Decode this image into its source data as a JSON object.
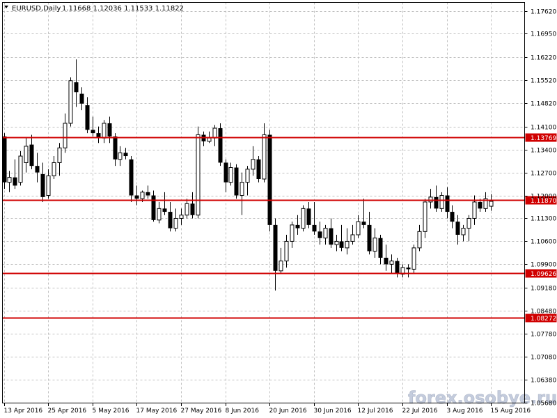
{
  "header": {
    "symbol": "EURUSD,Daily",
    "quote": "1.11668 1.12036 1.11533 1.11822",
    "symbol_dropdown_icon": "triangle-down-icon"
  },
  "watermark": "forex.osobye.ru",
  "colors": {
    "background": "#ffffff",
    "grid": "#c0c0c0",
    "candle": "#000000",
    "level_line": "#d00000",
    "level_tag": "#d00000"
  },
  "chart_data": {
    "type": "candlestick",
    "symbol": "EURUSD",
    "timeframe": "Daily",
    "ylim": [
      1.0568,
      1.1762
    ],
    "grid": true,
    "y_ticks": [
      "1.17620",
      "1.16950",
      "1.16220",
      "1.15520",
      "1.14820",
      "1.14100",
      "1.13400",
      "1.12700",
      "1.12000",
      "1.11300",
      "1.10600",
      "1.09900",
      "1.09180",
      "1.08480",
      "1.07780",
      "1.07080",
      "1.06380",
      "1.05680"
    ],
    "x_ticks": [
      {
        "label": "13 Apr 2016",
        "index": 0
      },
      {
        "label": "25 Apr 2016",
        "index": 8
      },
      {
        "label": "5 May 2016",
        "index": 16
      },
      {
        "label": "17 May 2016",
        "index": 24
      },
      {
        "label": "27 May 2016",
        "index": 32
      },
      {
        "label": "8 Jun 2016",
        "index": 40
      },
      {
        "label": "20 Jun 2016",
        "index": 48
      },
      {
        "label": "30 Jun 2016",
        "index": 56
      },
      {
        "label": "12 Jul 2016",
        "index": 64
      },
      {
        "label": "22 Jul 2016",
        "index": 72
      },
      {
        "label": "3 Aug 2016",
        "index": 80
      },
      {
        "label": "15 Aug 2016",
        "index": 88
      }
    ],
    "levels": [
      {
        "value": 1.13769,
        "label": "1.13769"
      },
      {
        "value": 1.1187,
        "label": "1.11870"
      },
      {
        "value": 1.09626,
        "label": "1.09626"
      },
      {
        "value": 1.08272,
        "label": "1.08272"
      }
    ],
    "candles": [
      [
        1.138,
        1.139,
        1.122,
        1.124
      ],
      [
        1.124,
        1.1275,
        1.121,
        1.1255
      ],
      [
        1.1255,
        1.131,
        1.122,
        1.123
      ],
      [
        1.124,
        1.1335,
        1.123,
        1.132
      ],
      [
        1.13,
        1.1375,
        1.127,
        1.135
      ],
      [
        1.1355,
        1.1385,
        1.128,
        1.129
      ],
      [
        1.129,
        1.133,
        1.124,
        1.127
      ],
      [
        1.1265,
        1.13,
        1.118,
        1.1195
      ],
      [
        1.12,
        1.128,
        1.119,
        1.126
      ],
      [
        1.126,
        1.132,
        1.125,
        1.13
      ],
      [
        1.13,
        1.136,
        1.126,
        1.1345
      ],
      [
        1.1345,
        1.145,
        1.133,
        1.142
      ],
      [
        1.142,
        1.156,
        1.141,
        1.155
      ],
      [
        1.1545,
        1.1615,
        1.147,
        1.1515
      ],
      [
        1.151,
        1.153,
        1.146,
        1.148
      ],
      [
        1.1475,
        1.15,
        1.139,
        1.14
      ],
      [
        1.14,
        1.144,
        1.138,
        1.139
      ],
      [
        1.139,
        1.141,
        1.136,
        1.1375
      ],
      [
        1.1375,
        1.143,
        1.136,
        1.142
      ],
      [
        1.142,
        1.144,
        1.136,
        1.138
      ],
      [
        1.138,
        1.139,
        1.129,
        1.131
      ],
      [
        1.131,
        1.135,
        1.129,
        1.133
      ],
      [
        1.133,
        1.1345,
        1.131,
        1.132
      ],
      [
        1.131,
        1.132,
        1.118,
        1.12
      ],
      [
        1.12,
        1.123,
        1.117,
        1.119
      ],
      [
        1.119,
        1.1215,
        1.118,
        1.121
      ],
      [
        1.121,
        1.123,
        1.119,
        1.12
      ],
      [
        1.12,
        1.1215,
        1.112,
        1.1125
      ],
      [
        1.1125,
        1.118,
        1.1115,
        1.116
      ],
      [
        1.116,
        1.121,
        1.114,
        1.115
      ],
      [
        1.115,
        1.118,
        1.109,
        1.11
      ],
      [
        1.11,
        1.116,
        1.109,
        1.113
      ],
      [
        1.113,
        1.116,
        1.111,
        1.114
      ],
      [
        1.114,
        1.119,
        1.113,
        1.1175
      ],
      [
        1.1175,
        1.121,
        1.113,
        1.114
      ],
      [
        1.114,
        1.141,
        1.113,
        1.1385
      ],
      [
        1.1385,
        1.1395,
        1.135,
        1.1365
      ],
      [
        1.1365,
        1.1395,
        1.136,
        1.1375
      ],
      [
        1.1375,
        1.1415,
        1.135,
        1.1405
      ],
      [
        1.1405,
        1.142,
        1.129,
        1.13
      ],
      [
        1.13,
        1.131,
        1.121,
        1.124
      ],
      [
        1.124,
        1.13,
        1.123,
        1.1285
      ],
      [
        1.1285,
        1.1295,
        1.119,
        1.12
      ],
      [
        1.12,
        1.127,
        1.114,
        1.124
      ],
      [
        1.124,
        1.129,
        1.12,
        1.128
      ],
      [
        1.128,
        1.135,
        1.126,
        1.131
      ],
      [
        1.131,
        1.132,
        1.124,
        1.125
      ],
      [
        1.125,
        1.142,
        1.124,
        1.1385
      ],
      [
        1.1385,
        1.14,
        1.109,
        1.111
      ],
      [
        1.111,
        1.113,
        1.091,
        1.097
      ],
      [
        1.097,
        1.104,
        1.096,
        1.1
      ],
      [
        1.1,
        1.108,
        1.098,
        1.106
      ],
      [
        1.106,
        1.112,
        1.104,
        1.111
      ],
      [
        1.111,
        1.114,
        1.108,
        1.11
      ],
      [
        1.11,
        1.117,
        1.109,
        1.116
      ],
      [
        1.116,
        1.118,
        1.11,
        1.111
      ],
      [
        1.111,
        1.118,
        1.108,
        1.109
      ],
      [
        1.109,
        1.112,
        1.105,
        1.107
      ],
      [
        1.107,
        1.111,
        1.105,
        1.11
      ],
      [
        1.11,
        1.113,
        1.104,
        1.105
      ],
      [
        1.105,
        1.108,
        1.103,
        1.106
      ],
      [
        1.106,
        1.111,
        1.103,
        1.104
      ],
      [
        1.104,
        1.11,
        1.102,
        1.106
      ],
      [
        1.106,
        1.111,
        1.105,
        1.108
      ],
      [
        1.108,
        1.114,
        1.107,
        1.112
      ],
      [
        1.112,
        1.119,
        1.11,
        1.111
      ],
      [
        1.111,
        1.115,
        1.102,
        1.103
      ],
      [
        1.103,
        1.11,
        1.101,
        1.107
      ],
      [
        1.107,
        1.108,
        1.099,
        1.101
      ],
      [
        1.101,
        1.105,
        1.097,
        1.099
      ],
      [
        1.099,
        1.102,
        1.096,
        1.1
      ],
      [
        1.1,
        1.101,
        1.095,
        1.096
      ],
      [
        1.096,
        1.099,
        1.095,
        1.098
      ],
      [
        1.098,
        1.099,
        1.095,
        1.0975
      ],
      [
        1.0975,
        1.105,
        1.096,
        1.104
      ],
      [
        1.104,
        1.111,
        1.103,
        1.109
      ],
      [
        1.109,
        1.119,
        1.107,
        1.118
      ],
      [
        1.118,
        1.122,
        1.116,
        1.1195
      ],
      [
        1.1195,
        1.123,
        1.115,
        1.116
      ],
      [
        1.116,
        1.121,
        1.115,
        1.12
      ],
      [
        1.12,
        1.1225,
        1.113,
        1.115
      ],
      [
        1.115,
        1.117,
        1.11,
        1.112
      ],
      [
        1.112,
        1.114,
        1.105,
        1.108
      ],
      [
        1.108,
        1.111,
        1.106,
        1.11
      ],
      [
        1.11,
        1.114,
        1.106,
        1.113
      ],
      [
        1.113,
        1.12,
        1.111,
        1.118
      ],
      [
        1.118,
        1.119,
        1.115,
        1.116
      ],
      [
        1.116,
        1.121,
        1.115,
        1.119
      ],
      [
        1.1167,
        1.1204,
        1.1153,
        1.1182
      ]
    ]
  }
}
